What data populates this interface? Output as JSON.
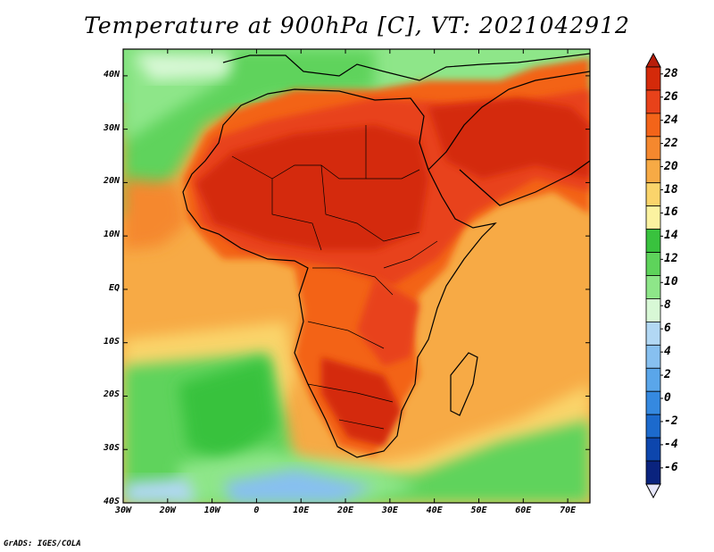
{
  "title": "Temperature at 900hPa [C], VT: 2021042912",
  "credit": "GrADS: IGES/COLA",
  "map": {
    "projection": "lat-lon",
    "lon_range": [
      -30,
      75
    ],
    "lat_range": [
      -40,
      45
    ],
    "x_ticks": [
      "30W",
      "20W",
      "10W",
      "0",
      "10E",
      "20E",
      "30E",
      "40E",
      "50E",
      "60E",
      "70E"
    ],
    "y_ticks": [
      "40N",
      "30N",
      "20N",
      "10N",
      "EQ",
      "10S",
      "20S",
      "30S",
      "40S"
    ]
  },
  "colorbar": {
    "labels": [
      "28",
      "26",
      "24",
      "22",
      "20",
      "18",
      "16",
      "14",
      "12",
      "10",
      "8",
      "6",
      "4",
      "2",
      "0",
      "-2",
      "-4",
      "-6"
    ],
    "colors": [
      "#d42a0a",
      "#e8421a",
      "#f36419",
      "#f5882e",
      "#f7aa45",
      "#fad46b",
      "#fbf2a0",
      "#39c23e",
      "#5ed35b",
      "#8ee689",
      "#d8f8d6",
      "#b2d8f4",
      "#87c0f0",
      "#5aa6ea",
      "#3589e0",
      "#1c6acd",
      "#0d46ad",
      "#0a237e"
    ],
    "under_color": "#e6e6fa",
    "over_color": "#b81d0a"
  }
}
